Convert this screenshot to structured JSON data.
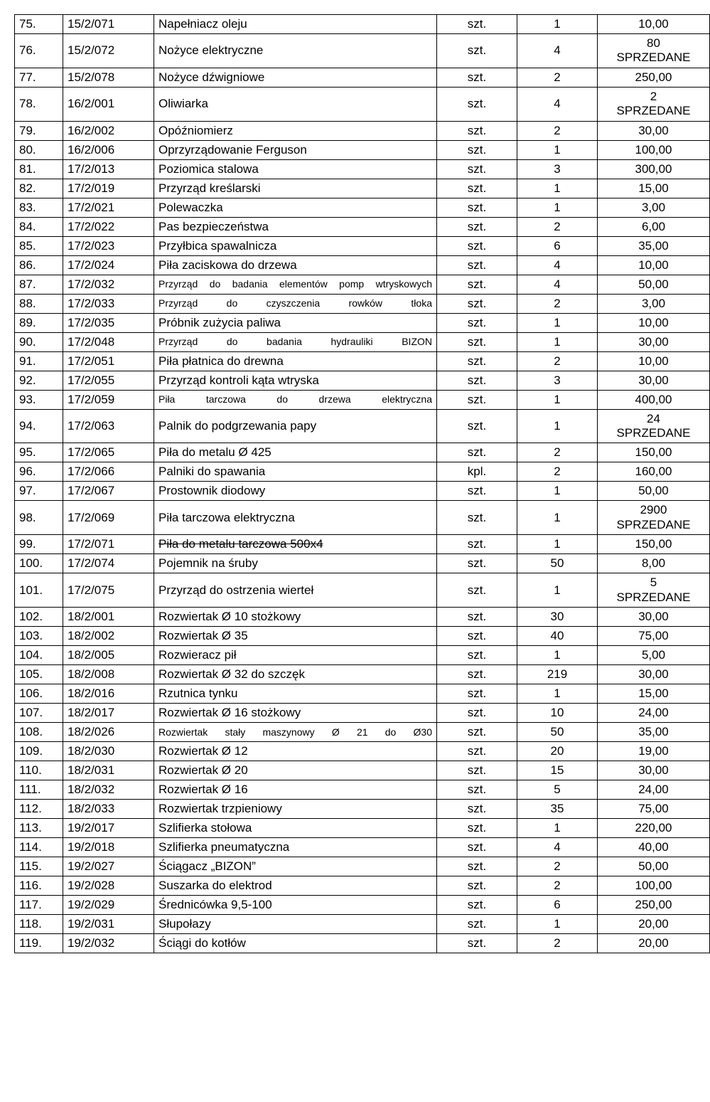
{
  "rows": [
    {
      "num": "75.",
      "code": "15/2/071",
      "name": "Napełniacz oleju",
      "unit": "szt.",
      "qty": "1",
      "price": "10,00"
    },
    {
      "num": "76.",
      "code": "15/2/072",
      "name": "Nożyce elektryczne",
      "unit": "szt.",
      "qty": "4",
      "price": "80\nSPRZEDANE"
    },
    {
      "num": "77.",
      "code": "15/2/078",
      "name": "Nożyce dźwigniowe",
      "unit": "szt.",
      "qty": "2",
      "price": "250,00"
    },
    {
      "num": "78.",
      "code": "16/2/001",
      "name": "Oliwiarka",
      "unit": "szt.",
      "qty": "4",
      "price": "2\nSPRZEDANE"
    },
    {
      "num": "79.",
      "code": "16/2/002",
      "name": "Opóźniomierz",
      "unit": "szt.",
      "qty": "2",
      "price": "30,00"
    },
    {
      "num": "80.",
      "code": "16/2/006",
      "name": "Oprzyrządowanie Ferguson",
      "unit": "szt.",
      "qty": "1",
      "price": "100,00"
    },
    {
      "num": "81.",
      "code": "17/2/013",
      "name": "Poziomica stalowa",
      "unit": "szt.",
      "qty": "3",
      "price": "300,00"
    },
    {
      "num": "82.",
      "code": "17/2/019",
      "name": "Przyrząd kreślarski",
      "unit": "szt.",
      "qty": "1",
      "price": "15,00"
    },
    {
      "num": "83.",
      "code": "17/2/021",
      "name": "Polewaczka",
      "unit": "szt.",
      "qty": "1",
      "price": "3,00"
    },
    {
      "num": "84.",
      "code": "17/2/022",
      "name": "Pas bezpieczeństwa",
      "unit": "szt.",
      "qty": "2",
      "price": "6,00"
    },
    {
      "num": "85.",
      "code": "17/2/023",
      "name": "Przyłbica spawalnicza",
      "unit": "szt.",
      "qty": "6",
      "price": "35,00"
    },
    {
      "num": "86.",
      "code": "17/2/024",
      "name": "Piła zaciskowa do drzewa",
      "unit": "szt.",
      "qty": "4",
      "price": "10,00"
    },
    {
      "num": "87.",
      "code": "17/2/032",
      "name": "Przyrząd do badania elementów pomp wtryskowych",
      "justify": true,
      "unit": "szt.",
      "qty": "4",
      "price": "50,00"
    },
    {
      "num": "88.",
      "code": "17/2/033",
      "name": "Przyrząd do czyszczenia rowków tłoka",
      "justify": true,
      "unit": "szt.",
      "qty": "2",
      "price": "3,00"
    },
    {
      "num": "89.",
      "code": "17/2/035",
      "name": "Próbnik zużycia paliwa",
      "unit": "szt.",
      "qty": "1",
      "price": "10,00"
    },
    {
      "num": "90.",
      "code": "17/2/048",
      "name": "Przyrząd do badania hydrauliki BIZON",
      "justify": true,
      "unit": "szt.",
      "qty": "1",
      "price": "30,00"
    },
    {
      "num": "91.",
      "code": "17/2/051",
      "name": "Piła płatnica do drewna",
      "unit": "szt.",
      "qty": "2",
      "price": "10,00"
    },
    {
      "num": "92.",
      "code": "17/2/055",
      "name": "Przyrząd kontroli kąta wtryska",
      "unit": "szt.",
      "qty": "3",
      "price": "30,00"
    },
    {
      "num": "93.",
      "code": "17/2/059",
      "name": "Piła tarczowa do drzewa elektryczna",
      "justify": true,
      "unit": "szt.",
      "qty": "1",
      "price": "400,00"
    },
    {
      "num": "94.",
      "code": "17/2/063",
      "name": "Palnik do podgrzewania papy",
      "unit": "szt.",
      "qty": "1",
      "price": "24\nSPRZEDANE"
    },
    {
      "num": "95.",
      "code": "17/2/065",
      "name": "Piła do metalu Ø 425",
      "unit": "szt.",
      "qty": "2",
      "price": "150,00"
    },
    {
      "num": "96.",
      "code": "17/2/066",
      "name": "Palniki do spawania",
      "unit": "kpl.",
      "qty": "2",
      "price": "160,00"
    },
    {
      "num": "97.",
      "code": "17/2/067",
      "name": "Prostownik diodowy",
      "unit": "szt.",
      "qty": "1",
      "price": "50,00"
    },
    {
      "num": "98.",
      "code": "17/2/069",
      "name": "Piła tarczowa elektryczna",
      "unit": "szt.",
      "qty": "1",
      "price": "2900\nSPRZEDANE"
    },
    {
      "num": "99.",
      "code": "17/2/071",
      "name": "Piła do metalu tarczowa 500x4",
      "strike": true,
      "unit": "szt.",
      "qty": "1",
      "price": "150,00"
    },
    {
      "num": "100.",
      "code": "17/2/074",
      "name": "Pojemnik na śruby",
      "unit": "szt.",
      "qty": "50",
      "price": "8,00"
    },
    {
      "num": "101.",
      "code": "17/2/075",
      "name": "Przyrząd do ostrzenia wierteł",
      "unit": "szt.",
      "qty": "1",
      "price": "5\nSPRZEDANE"
    },
    {
      "num": "102.",
      "code": "18/2/001",
      "name": "Rozwiertak Ø 10 stożkowy",
      "unit": "szt.",
      "qty": "30",
      "price": "30,00"
    },
    {
      "num": "103.",
      "code": "18/2/002",
      "name": "Rozwiertak Ø 35",
      "unit": "szt.",
      "qty": "40",
      "price": "75,00"
    },
    {
      "num": "104.",
      "code": "18/2/005",
      "name": "Rozwieracz pił",
      "unit": "szt.",
      "qty": "1",
      "price": "5,00"
    },
    {
      "num": "105.",
      "code": "18/2/008",
      "name": "Rozwiertak Ø 32 do szczęk",
      "unit": "szt.",
      "qty": "219",
      "price": "30,00"
    },
    {
      "num": "106.",
      "code": "18/2/016",
      "name": "Rzutnica tynku",
      "unit": "szt.",
      "qty": "1",
      "price": "15,00"
    },
    {
      "num": "107.",
      "code": "18/2/017",
      "name": "Rozwiertak Ø 16 stożkowy",
      "unit": "szt.",
      "qty": "10",
      "price": "24,00"
    },
    {
      "num": "108.",
      "code": "18/2/026",
      "name": "Rozwiertak stały maszynowy Ø 21 do Ø30",
      "justify": true,
      "unit": "szt.",
      "qty": "50",
      "price": "35,00"
    },
    {
      "num": "109.",
      "code": "18/2/030",
      "name": "Rozwiertak Ø 12",
      "unit": "szt.",
      "qty": "20",
      "price": "19,00"
    },
    {
      "num": "110.",
      "code": "18/2/031",
      "name": "Rozwiertak Ø 20",
      "unit": "szt.",
      "qty": "15",
      "price": "30,00"
    },
    {
      "num": "111.",
      "code": "18/2/032",
      "name": "Rozwiertak Ø 16",
      "unit": "szt.",
      "qty": "5",
      "price": "24,00"
    },
    {
      "num": "112.",
      "code": "18/2/033",
      "name": "Rozwiertak trzpieniowy",
      "unit": "szt.",
      "qty": "35",
      "price": "75,00"
    },
    {
      "num": "113.",
      "code": "19/2/017",
      "name": "Szlifierka stołowa",
      "unit": "szt.",
      "qty": "1",
      "price": "220,00"
    },
    {
      "num": "114.",
      "code": "19/2/018",
      "name": "Szlifierka pneumatyczna",
      "unit": "szt.",
      "qty": "4",
      "price": "40,00"
    },
    {
      "num": "115.",
      "code": "19/2/027",
      "name": "Ściągacz „BIZON”",
      "unit": "szt.",
      "qty": "2",
      "price": "50,00"
    },
    {
      "num": "116.",
      "code": "19/2/028",
      "name": "Suszarka do elektrod",
      "unit": "szt.",
      "qty": "2",
      "price": "100,00"
    },
    {
      "num": "117.",
      "code": "19/2/029",
      "name": "Średnicówka 9,5-100",
      "unit": "szt.",
      "qty": "6",
      "price": "250,00"
    },
    {
      "num": "118.",
      "code": "19/2/031",
      "name": "Słupołazy",
      "unit": "szt.",
      "qty": "1",
      "price": "20,00"
    },
    {
      "num": "119.",
      "code": "19/2/032",
      "name": "Ściągi do kotłów",
      "unit": "szt.",
      "qty": "2",
      "price": "20,00"
    }
  ]
}
